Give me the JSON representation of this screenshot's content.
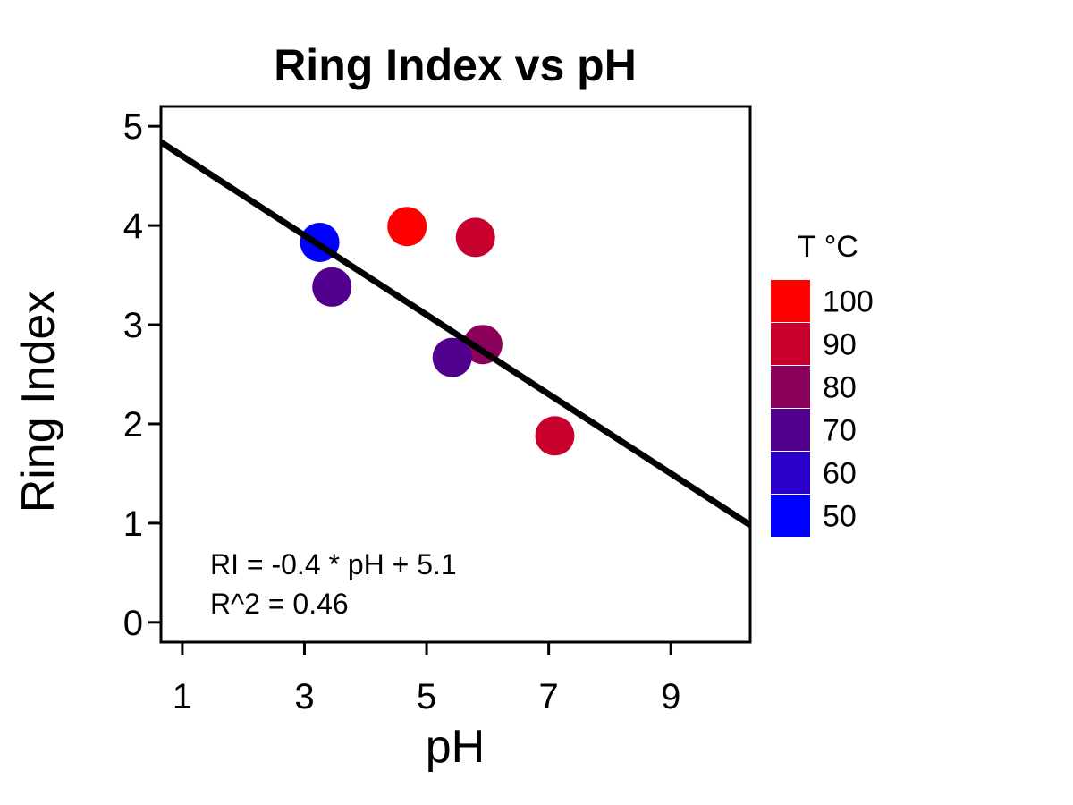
{
  "chart_data": {
    "type": "scatter",
    "title": "Ring Index vs pH",
    "xlabel": "pH",
    "ylabel": "Ring Index",
    "xlim": [
      0.65,
      10.3
    ],
    "ylim": [
      -0.2,
      5.2
    ],
    "x_ticks": [
      1,
      3,
      5,
      7,
      9
    ],
    "y_ticks": [
      0,
      1,
      2,
      3,
      4,
      5
    ],
    "points": [
      {
        "x": 3.25,
        "y": 3.83,
        "temp": 50
      },
      {
        "x": 3.45,
        "y": 3.38,
        "temp": 70
      },
      {
        "x": 4.68,
        "y": 3.99,
        "temp": 100
      },
      {
        "x": 5.8,
        "y": 3.88,
        "temp": 90
      },
      {
        "x": 5.92,
        "y": 2.8,
        "temp": 80
      },
      {
        "x": 5.42,
        "y": 2.67,
        "temp": 70
      },
      {
        "x": 7.1,
        "y": 1.88,
        "temp": 90
      }
    ],
    "fit_line": {
      "slope": -0.4,
      "intercept": 5.1
    },
    "annotations": [
      "RI = -0.4 * pH + 5.1",
      "R^2 = 0.46"
    ],
    "legend": {
      "title": "T °C",
      "position": "right",
      "entries": [
        {
          "label": "100",
          "value": 100,
          "color": "#ff0000"
        },
        {
          "label": "90",
          "value": 90,
          "color": "#c8002e"
        },
        {
          "label": "80",
          "value": 80,
          "color": "#8a005a"
        },
        {
          "label": "70",
          "value": 70,
          "color": "#51008e"
        },
        {
          "label": "60",
          "value": 60,
          "color": "#2a00c8"
        },
        {
          "label": "50",
          "value": 50,
          "color": "#0000ff"
        }
      ]
    },
    "grid": false
  }
}
